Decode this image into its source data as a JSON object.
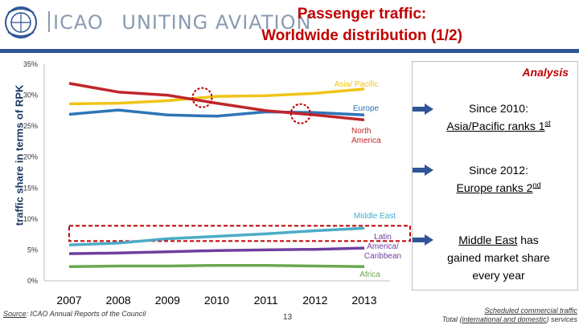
{
  "header": {
    "logo_text": "ICAO",
    "logo_tagline": "UNITING AVIATION",
    "title_line1": "Passenger traffic:",
    "title_line2": "Worldwide distribution (1/2)"
  },
  "colors": {
    "title_red": "#c00000",
    "header_blue": "#2f5597",
    "asia": "#f0c419",
    "europe": "#2e75b6",
    "north_america": "#c0262c",
    "middle_east": "#4bacc6",
    "latin_america": "#6f3f9f",
    "africa": "#6aa84f"
  },
  "chart_data": {
    "type": "line",
    "ylabel": "traffic share in terms of RPK",
    "x": [
      "2007",
      "2008",
      "2009",
      "2010",
      "2011",
      "2012",
      "2013"
    ],
    "y_ticks": [
      "0%",
      "5%",
      "10%",
      "15%",
      "20%",
      "25%",
      "30%",
      "35%"
    ],
    "ylim": [
      0,
      35
    ],
    "grid": false,
    "series": [
      {
        "name": "Asia/ Pacific",
        "color": "#f0c419",
        "values": [
          28.6,
          28.7,
          29.1,
          29.8,
          29.9,
          30.3,
          31.0
        ]
      },
      {
        "name": "Europe",
        "color": "#2e75b6",
        "values": [
          26.9,
          27.6,
          26.8,
          26.6,
          27.3,
          27.2,
          26.8
        ]
      },
      {
        "name": "North America",
        "color": "#c0262c",
        "values": [
          31.9,
          30.5,
          30.0,
          28.7,
          27.5,
          26.8,
          26.0
        ]
      },
      {
        "name": "Middle East",
        "color": "#4bacc6",
        "values": [
          5.8,
          6.1,
          6.8,
          7.2,
          7.6,
          8.1,
          8.5
        ]
      },
      {
        "name": "Latin America/ Caribbean",
        "color": "#6f3f9f",
        "values": [
          4.4,
          4.5,
          4.7,
          4.9,
          5.0,
          5.1,
          5.3
        ]
      },
      {
        "name": "Africa",
        "color": "#6aa84f",
        "values": [
          2.3,
          2.4,
          2.4,
          2.5,
          2.5,
          2.4,
          2.3
        ]
      }
    ],
    "highlight_circles": [
      {
        "x": "2010",
        "y": 29.6
      },
      {
        "x": "2012",
        "y": 27.0
      }
    ],
    "highlight_box_series": "Middle East"
  },
  "analysis": {
    "title": "Analysis",
    "bullet1_line1": "Since 2010:",
    "bullet1_line2": "Asia/Pacific ranks 1",
    "bullet1_sup": "st",
    "bullet2_line1": "Since 2012:",
    "bullet2_line2": "Europe ranks 2",
    "bullet2_sup": "nd",
    "bullet3_underlined": "Middle East",
    "bullet3_rest": " has",
    "bullet3_line2": "gained market share",
    "bullet3_line3": "every year"
  },
  "footer": {
    "source_label": "Source",
    "source_text": ": ICAO Annual Reports of the Council",
    "page_number": "13",
    "note_line1": "Scheduled commercial traffic",
    "note_line2_prefix": "Total (",
    "note_line2_u": "international and domestic",
    "note_line2_suffix": ") services"
  }
}
